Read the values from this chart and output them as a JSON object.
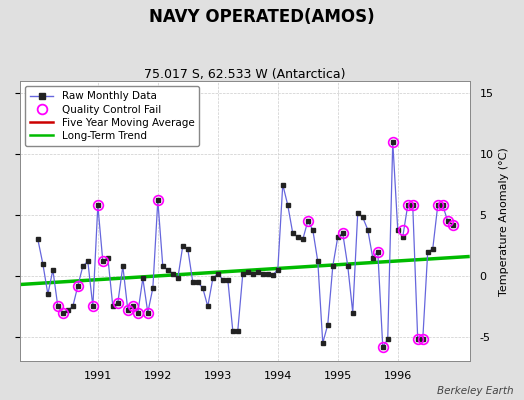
{
  "title": "NAVY OPERATED(AMOS)",
  "subtitle": "75.017 S, 62.533 W (Antarctica)",
  "ylabel": "Temperature Anomaly (°C)",
  "credit": "Berkeley Earth",
  "background_color": "#e0e0e0",
  "plot_bg_color": "#ffffff",
  "ylim": [
    -7,
    16
  ],
  "yticks": [
    -5,
    0,
    5,
    10,
    15
  ],
  "xlim": [
    1989.7,
    1997.2
  ],
  "xtick_positions": [
    1991,
    1992,
    1993,
    1994,
    1995,
    1996
  ],
  "raw_x": [
    1990.0,
    1990.083,
    1990.167,
    1990.25,
    1990.333,
    1990.417,
    1990.5,
    1990.583,
    1990.667,
    1990.75,
    1990.833,
    1990.917,
    1991.0,
    1991.083,
    1991.167,
    1991.25,
    1991.333,
    1991.417,
    1991.5,
    1991.583,
    1991.667,
    1991.75,
    1991.833,
    1991.917,
    1992.0,
    1992.083,
    1992.167,
    1992.25,
    1992.333,
    1992.417,
    1992.5,
    1992.583,
    1992.667,
    1992.75,
    1992.833,
    1992.917,
    1993.0,
    1993.083,
    1993.167,
    1993.25,
    1993.333,
    1993.417,
    1993.5,
    1993.583,
    1993.667,
    1993.75,
    1993.833,
    1993.917,
    1994.0,
    1994.083,
    1994.167,
    1994.25,
    1994.333,
    1994.417,
    1994.5,
    1994.583,
    1994.667,
    1994.75,
    1994.833,
    1994.917,
    1995.0,
    1995.083,
    1995.167,
    1995.25,
    1995.333,
    1995.417,
    1995.5,
    1995.583,
    1995.667,
    1995.75,
    1995.833,
    1995.917,
    1996.0,
    1996.083,
    1996.167,
    1996.25,
    1996.333,
    1996.417,
    1996.5,
    1996.583,
    1996.667,
    1996.75,
    1996.833,
    1996.917
  ],
  "raw_y": [
    3.0,
    1.0,
    -1.5,
    0.5,
    -2.5,
    -3.0,
    -2.8,
    -2.5,
    -0.8,
    0.8,
    1.2,
    -2.5,
    5.8,
    1.2,
    1.5,
    -2.5,
    -2.2,
    0.8,
    -2.8,
    -2.5,
    -3.0,
    -0.2,
    -3.0,
    -1.0,
    6.2,
    0.8,
    0.5,
    0.2,
    -0.2,
    2.5,
    2.2,
    -0.5,
    -0.5,
    -1.0,
    -2.5,
    -0.2,
    0.2,
    -0.3,
    -0.3,
    -4.5,
    -4.5,
    0.2,
    0.3,
    0.2,
    0.3,
    0.2,
    0.2,
    0.1,
    0.5,
    7.5,
    5.8,
    3.5,
    3.2,
    3.0,
    4.5,
    3.8,
    1.2,
    -5.5,
    -4.0,
    0.8,
    3.2,
    3.5,
    0.8,
    -3.0,
    5.2,
    4.8,
    3.8,
    1.5,
    2.0,
    -5.8,
    -5.2,
    11.0,
    3.8,
    3.2,
    5.8,
    5.8,
    -5.2,
    -5.2,
    2.0,
    2.2,
    5.8,
    5.8,
    4.5,
    4.2
  ],
  "qc_fail_x": [
    1990.333,
    1990.417,
    1990.667,
    1990.917,
    1991.0,
    1991.083,
    1991.333,
    1991.5,
    1991.583,
    1991.667,
    1991.833,
    1992.0,
    1994.5,
    1995.083,
    1995.667,
    1995.75,
    1995.917,
    1996.083,
    1996.167,
    1996.25,
    1996.333,
    1996.417,
    1996.667,
    1996.75,
    1996.833,
    1996.917
  ],
  "qc_fail_y": [
    -2.5,
    -3.0,
    -0.8,
    -2.5,
    5.8,
    1.2,
    -2.2,
    -2.8,
    -2.5,
    -3.0,
    -3.0,
    6.2,
    4.5,
    3.5,
    2.0,
    -5.8,
    11.0,
    3.8,
    5.8,
    5.8,
    -5.2,
    -5.2,
    5.8,
    5.8,
    4.5,
    4.2
  ],
  "trend_x": [
    1989.7,
    1997.2
  ],
  "trend_y": [
    -0.7,
    1.6
  ],
  "line_color": "#6666dd",
  "marker_color": "#222222",
  "qc_color": "#ff00ff",
  "trend_color": "#00bb00",
  "moving_avg_color": "#cc0000",
  "grid_color": "#cccccc",
  "title_fontsize": 12,
  "subtitle_fontsize": 9,
  "tick_fontsize": 8,
  "legend_fontsize": 7.5,
  "ylabel_fontsize": 8
}
